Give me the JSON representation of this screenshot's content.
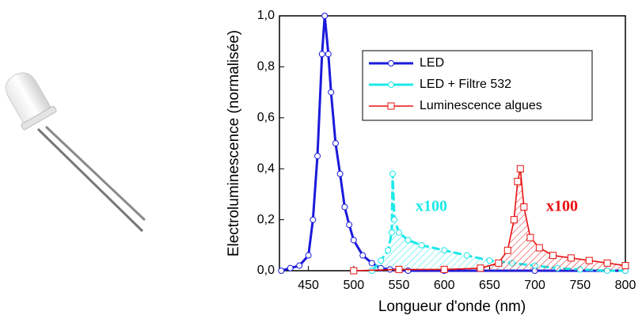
{
  "chart_data": {
    "type": "line",
    "xlabel": "Longueur d'onde (nm)",
    "ylabel": "Electroluminescence (normalisée)",
    "xlim": [
      418,
      800
    ],
    "xticks": [
      450,
      500,
      550,
      600,
      650,
      700,
      750,
      800
    ],
    "ylim": [
      0,
      1
    ],
    "yticks": [
      {
        "value": 0,
        "label": "0,0"
      },
      {
        "value": 0.2,
        "label": "0,2"
      },
      {
        "value": 0.4,
        "label": "0,4"
      },
      {
        "value": 0.6,
        "label": "0,6"
      },
      {
        "value": 0.8,
        "label": "0,8"
      },
      {
        "value": 1,
        "label": "1,0"
      }
    ],
    "legend": "upper right",
    "series": [
      {
        "name": "LED",
        "color": "#1a1adb",
        "marker": "circle",
        "dashed": false,
        "hatch": false,
        "x": [
          420,
          430,
          440,
          450,
          455,
          460,
          465,
          468,
          472,
          475,
          480,
          485,
          490,
          495,
          500,
          510,
          520,
          530,
          540,
          560,
          600,
          700,
          800
        ],
        "values": [
          0.0,
          0.01,
          0.02,
          0.06,
          0.2,
          0.45,
          0.85,
          1.0,
          0.85,
          0.7,
          0.5,
          0.38,
          0.25,
          0.18,
          0.12,
          0.06,
          0.03,
          0.01,
          0.005,
          0.0,
          0.0,
          0.0,
          0.0
        ]
      },
      {
        "name": "LED + Filtre 532",
        "color": "#1ee8e8",
        "marker": "circle",
        "dashed": true,
        "hatch": true,
        "x": [
          520,
          530,
          538,
          542,
          543,
          545,
          550,
          560,
          575,
          600,
          625,
          650,
          675,
          700,
          725,
          750,
          780,
          800
        ],
        "values": [
          0.0,
          0.04,
          0.08,
          0.15,
          0.38,
          0.2,
          0.15,
          0.12,
          0.1,
          0.08,
          0.06,
          0.04,
          0.03,
          0.02,
          0.01,
          0.005,
          0.0,
          0.0
        ]
      },
      {
        "name": "Luminescence algues",
        "color": "#e81010",
        "marker": "square",
        "dashed": false,
        "hatch": true,
        "x": [
          500,
          550,
          600,
          640,
          660,
          670,
          677,
          681,
          684,
          688,
          695,
          705,
          720,
          740,
          760,
          780,
          800
        ],
        "values": [
          0.0,
          0.005,
          0.005,
          0.01,
          0.03,
          0.08,
          0.2,
          0.35,
          0.4,
          0.25,
          0.13,
          0.09,
          0.06,
          0.05,
          0.04,
          0.03,
          0.02
        ]
      }
    ],
    "annotations": [
      {
        "text": "x100",
        "color": "#1ee8e8"
      },
      {
        "text": "x100",
        "color": "#e81010"
      }
    ]
  }
}
